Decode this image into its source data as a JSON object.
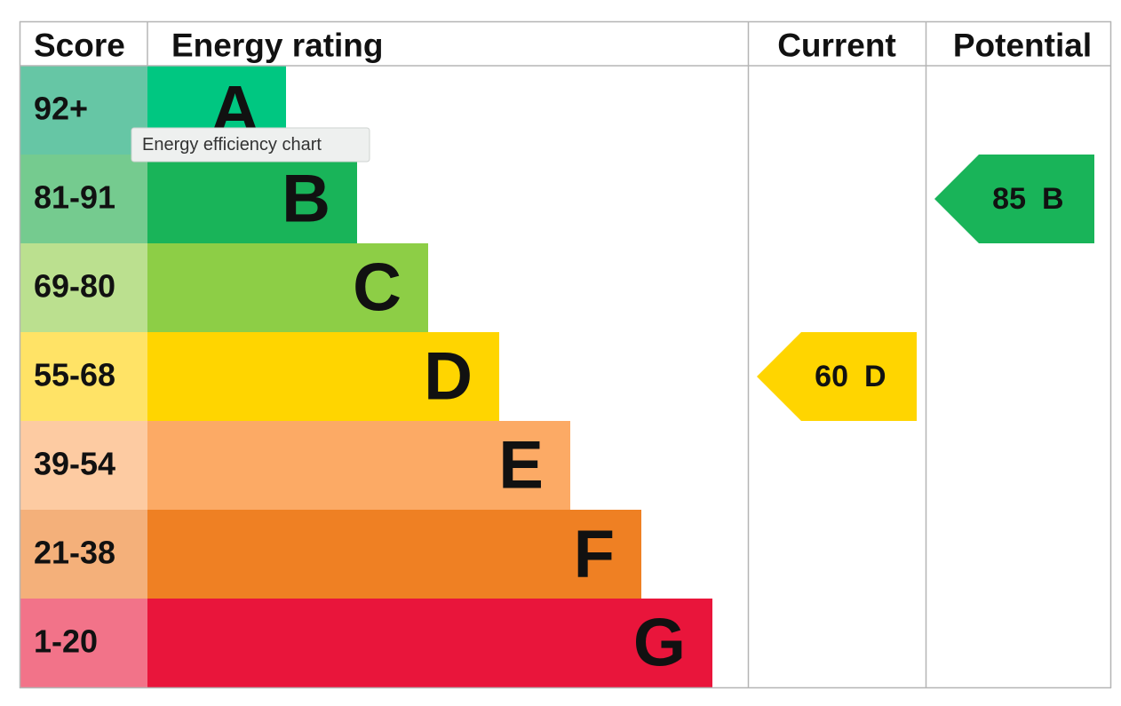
{
  "header": {
    "score": "Score",
    "rating": "Energy rating",
    "current": "Current",
    "potential": "Potential"
  },
  "bands": [
    {
      "score": "92+",
      "letter": "A",
      "color": "#00c781",
      "score_color": "#66c6a5"
    },
    {
      "score": "81-91",
      "letter": "B",
      "color": "#19b459",
      "score_color": "#75cb8f"
    },
    {
      "score": "69-80",
      "letter": "C",
      "color": "#8dce46",
      "score_color": "#bbe08f"
    },
    {
      "score": "55-68",
      "letter": "D",
      "color": "#ffd500",
      "score_color": "#ffe366"
    },
    {
      "score": "39-54",
      "letter": "E",
      "color": "#fcaa65",
      "score_color": "#fdcba2"
    },
    {
      "score": "21-38",
      "letter": "F",
      "color": "#ef8023",
      "score_color": "#f4b07a"
    },
    {
      "score": "1-20",
      "letter": "G",
      "color": "#e9153b",
      "score_color": "#f27389"
    }
  ],
  "current": {
    "score": 60,
    "rating": "D"
  },
  "potential": {
    "score": 85,
    "rating": "B"
  },
  "tooltip": "Energy efficiency chart"
}
